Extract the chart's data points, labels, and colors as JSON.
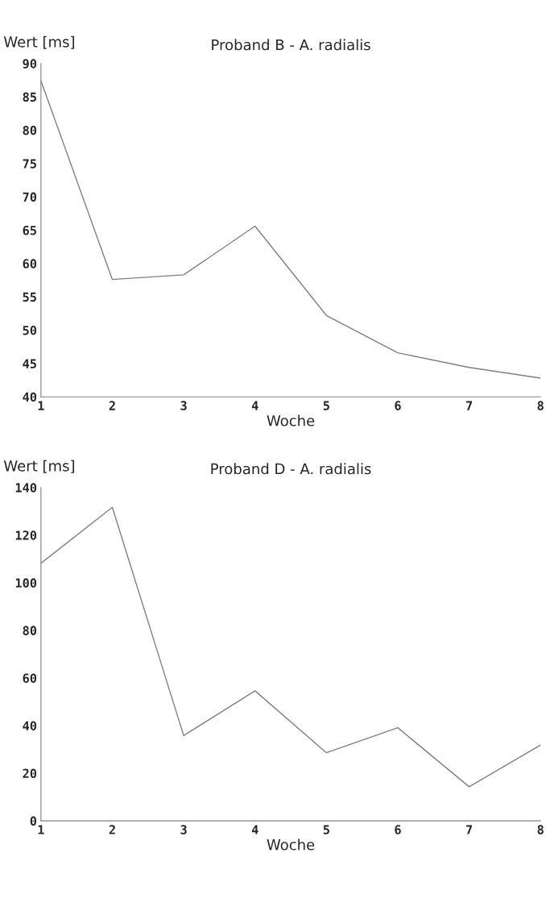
{
  "chart_data": [
    {
      "type": "line",
      "title": "Proband B - A. radialis",
      "xlabel": "Woche",
      "ylabel": "Wert [ms]",
      "x": [
        1,
        2,
        3,
        4,
        5,
        6,
        7,
        8
      ],
      "series": [
        {
          "color": "#808080",
          "values": [
            87.4,
            57.6,
            58.3,
            65.6,
            52.2,
            46.6,
            44.4,
            42.8
          ]
        }
      ],
      "xlim": [
        1,
        8
      ],
      "xticks": [
        1,
        2,
        3,
        4,
        5,
        6,
        7,
        8
      ],
      "ylim": [
        40,
        90
      ],
      "yticks": [
        40,
        45,
        50,
        55,
        60,
        65,
        70,
        75,
        80,
        85,
        90
      ],
      "grid": false
    },
    {
      "type": "line",
      "title": "Proband D - A. radialis",
      "xlabel": "Woche",
      "ylabel": "Wert [ms]",
      "x": [
        1,
        2,
        3,
        4,
        5,
        6,
        7,
        8
      ],
      "series": [
        {
          "color": "#808080",
          "values": [
            108.2,
            131.7,
            35.8,
            54.6,
            28.6,
            39.1,
            14.3,
            31.8
          ]
        }
      ],
      "xlim": [
        1,
        8
      ],
      "xticks": [
        1,
        2,
        3,
        4,
        5,
        6,
        7,
        8
      ],
      "ylim": [
        0,
        140
      ],
      "yticks": [
        0,
        20,
        40,
        60,
        80,
        100,
        120,
        140
      ],
      "grid": false
    }
  ]
}
